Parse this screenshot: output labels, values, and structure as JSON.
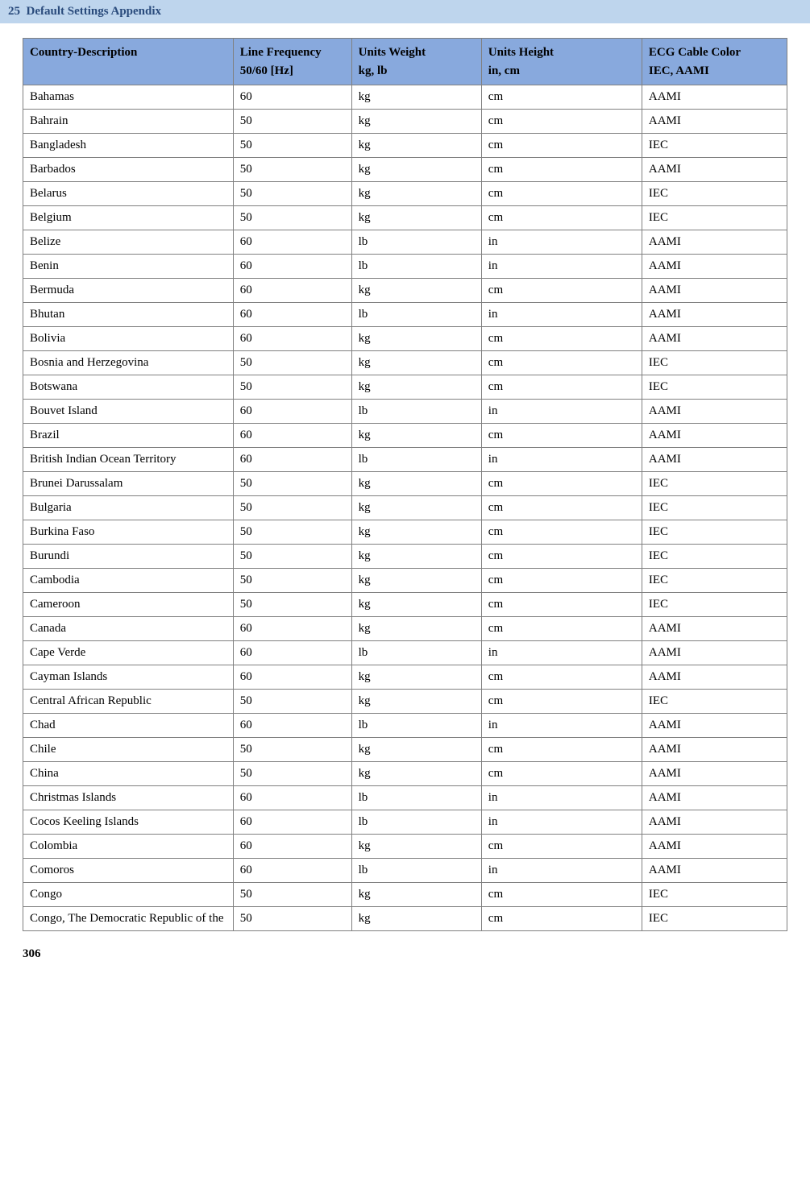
{
  "header": {
    "chapter_num": "25",
    "chapter_title": "Default Settings Appendix"
  },
  "table": {
    "columns": [
      {
        "line1": "Country-Description",
        "line2": ""
      },
      {
        "line1": "Line Frequency",
        "line2": "50/60 [Hz]"
      },
      {
        "line1": "Units Weight",
        "line2": "kg, lb"
      },
      {
        "line1": "Units Height",
        "line2": "in, cm"
      },
      {
        "line1": "ECG Cable Color",
        "line2": "IEC, AAMI"
      }
    ],
    "rows": [
      [
        "Bahamas",
        "60",
        "kg",
        "cm",
        "AAMI"
      ],
      [
        "Bahrain",
        "50",
        "kg",
        "cm",
        "AAMI"
      ],
      [
        "Bangladesh",
        "50",
        "kg",
        "cm",
        "IEC"
      ],
      [
        "Barbados",
        "50",
        "kg",
        "cm",
        "AAMI"
      ],
      [
        "Belarus",
        "50",
        "kg",
        "cm",
        "IEC"
      ],
      [
        "Belgium",
        "50",
        "kg",
        "cm",
        "IEC"
      ],
      [
        "Belize",
        "60",
        "lb",
        "in",
        "AAMI"
      ],
      [
        "Benin",
        "60",
        "lb",
        "in",
        "AAMI"
      ],
      [
        "Bermuda",
        "60",
        "kg",
        "cm",
        "AAMI"
      ],
      [
        "Bhutan",
        "60",
        "lb",
        "in",
        "AAMI"
      ],
      [
        "Bolivia",
        "60",
        "kg",
        "cm",
        "AAMI"
      ],
      [
        "Bosnia and Herzegovina",
        "50",
        "kg",
        "cm",
        "IEC"
      ],
      [
        "Botswana",
        "50",
        "kg",
        "cm",
        "IEC"
      ],
      [
        "Bouvet Island",
        "60",
        "lb",
        "in",
        "AAMI"
      ],
      [
        "Brazil",
        "60",
        "kg",
        "cm",
        "AAMI"
      ],
      [
        "British Indian Ocean Territory",
        "60",
        "lb",
        "in",
        "AAMI"
      ],
      [
        "Brunei Darussalam",
        "50",
        "kg",
        "cm",
        "IEC"
      ],
      [
        "Bulgaria",
        "50",
        "kg",
        "cm",
        "IEC"
      ],
      [
        "Burkina Faso",
        "50",
        "kg",
        "cm",
        "IEC"
      ],
      [
        "Burundi",
        "50",
        "kg",
        "cm",
        "IEC"
      ],
      [
        "Cambodia",
        "50",
        "kg",
        "cm",
        "IEC"
      ],
      [
        "Cameroon",
        "50",
        "kg",
        "cm",
        "IEC"
      ],
      [
        "Canada",
        "60",
        "kg",
        "cm",
        "AAMI"
      ],
      [
        "Cape Verde",
        "60",
        "lb",
        "in",
        "AAMI"
      ],
      [
        "Cayman Islands",
        "60",
        "kg",
        "cm",
        "AAMI"
      ],
      [
        "Central African Republic",
        "50",
        "kg",
        "cm",
        "IEC"
      ],
      [
        "Chad",
        "60",
        "lb",
        "in",
        "AAMI"
      ],
      [
        "Chile",
        "50",
        "kg",
        "cm",
        "AAMI"
      ],
      [
        "China",
        "50",
        "kg",
        "cm",
        "AAMI"
      ],
      [
        "Christmas Islands",
        "60",
        "lb",
        "in",
        "AAMI"
      ],
      [
        "Cocos Keeling Islands",
        "60",
        "lb",
        "in",
        "AAMI"
      ],
      [
        "Colombia",
        "60",
        "kg",
        "cm",
        "AAMI"
      ],
      [
        "Comoros",
        "60",
        "lb",
        "in",
        "AAMI"
      ],
      [
        "Congo",
        "50",
        "kg",
        "cm",
        "IEC"
      ],
      [
        "Congo, The Democratic Republic of the",
        "50",
        "kg",
        "cm",
        "IEC"
      ]
    ]
  },
  "page_number": "306"
}
